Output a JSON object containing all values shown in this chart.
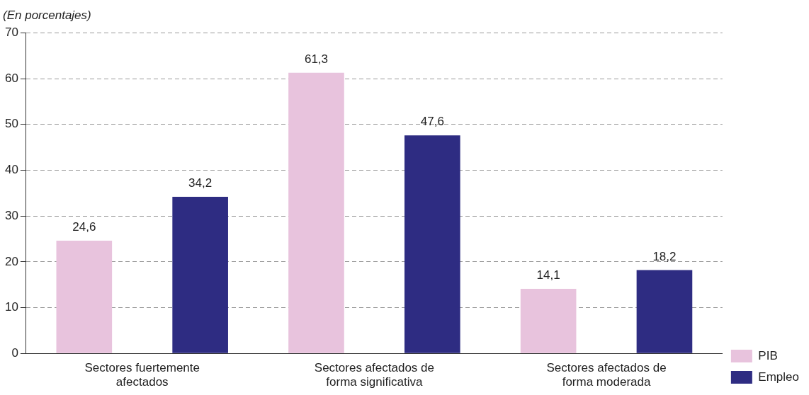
{
  "chart_data": {
    "type": "bar",
    "subtitle": "(En porcentajes)",
    "categories": [
      "Sectores fuertemente afectados",
      "Sectores afectados de forma significativa",
      "Sectores afectados de forma moderada"
    ],
    "series": [
      {
        "name": "PIB",
        "color": "#e8c3dd",
        "values": [
          24.6,
          61.3,
          14.1
        ],
        "value_labels": [
          "24,6",
          "61,3",
          "14,1"
        ]
      },
      {
        "name": "Empleo",
        "color": "#2e2c82",
        "values": [
          34.2,
          47.6,
          18.2
        ],
        "value_labels": [
          "34,2",
          "47,6",
          "18,2"
        ]
      }
    ],
    "ylim": [
      0,
      70
    ],
    "yticks": [
      0,
      10,
      20,
      30,
      40,
      50,
      60,
      70
    ],
    "grid": "y",
    "legend": "bottom right"
  }
}
